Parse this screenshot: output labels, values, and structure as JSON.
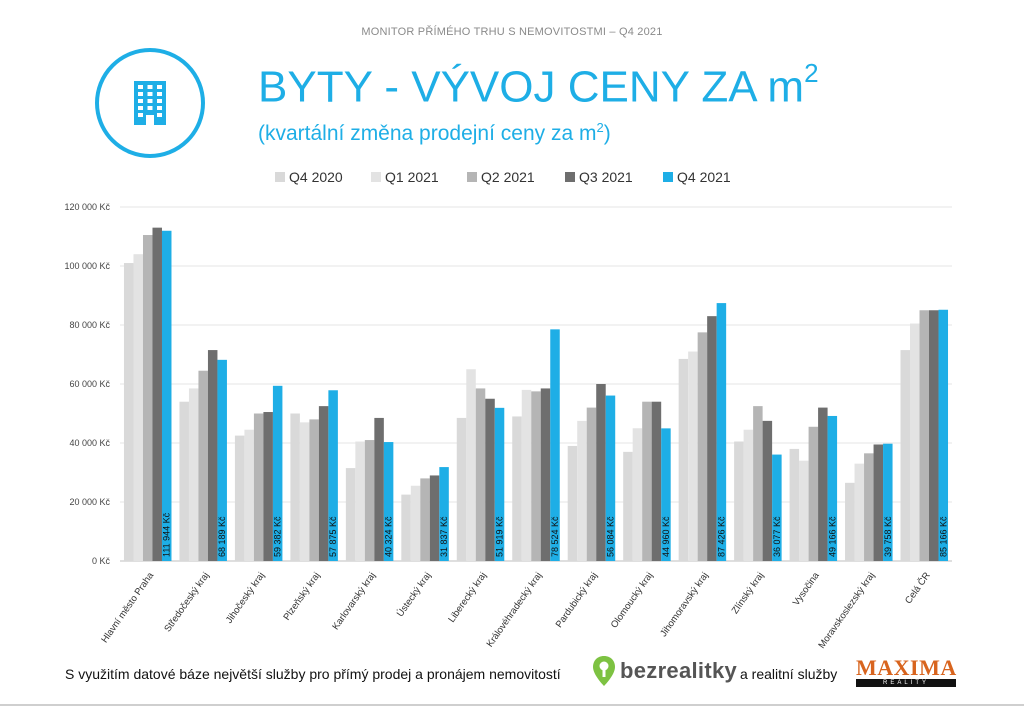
{
  "header": {
    "text": "MONITOR PŘÍMÉHO TRHU S NEMOVITOSTMI – Q4 2021",
    "logo_icon": "building-icon"
  },
  "title": {
    "main": "BYTY - VÝVOJ CENY ZA m",
    "main_sup": "2",
    "sub": "(kvartální změna prodejní ceny za m",
    "sub_sup": "2",
    "sub_end": ")"
  },
  "colors": {
    "accent": "#1eaee6",
    "Q4 2020": "#d9d9d9",
    "Q1 2021": "#e3e3e3",
    "Q2 2021": "#b5b5b5",
    "Q3 2021": "#6e6e6e",
    "Q4 2021": "#1eaee6"
  },
  "chart_data": {
    "type": "bar",
    "categories": [
      "Hlavní město Praha",
      "Středočeský kraj",
      "Jihočeský kraj",
      "Plzeňský kraj",
      "Karlovarský kraj",
      "Ústecký kraj",
      "Liberecký kraj",
      "Královéhradecký kraj",
      "Pardubický kraj",
      "Olomoucký kraj",
      "Jihomoravský kraj",
      "Zlínský kraj",
      "Vysočina",
      "Moravskoslezský kraj",
      "Celá ČR"
    ],
    "series": [
      {
        "name": "Q4 2020",
        "values": [
          101000,
          54000,
          42500,
          50000,
          31500,
          22500,
          48500,
          49000,
          39000,
          37000,
          68500,
          40500,
          38000,
          26500,
          71500
        ]
      },
      {
        "name": "Q1 2021",
        "values": [
          104000,
          58500,
          44500,
          47000,
          40500,
          25500,
          65000,
          58000,
          47500,
          45000,
          71000,
          44500,
          34000,
          33000,
          80500
        ]
      },
      {
        "name": "Q2 2021",
        "values": [
          110500,
          64500,
          50000,
          48000,
          41000,
          28000,
          58500,
          57500,
          52000,
          54000,
          77500,
          52500,
          45500,
          36500,
          85000
        ]
      },
      {
        "name": "Q3 2021",
        "values": [
          113000,
          71500,
          50500,
          52500,
          48500,
          29000,
          55000,
          58500,
          60000,
          54000,
          83000,
          47500,
          52000,
          39500,
          85000
        ]
      },
      {
        "name": "Q4 2021",
        "values": [
          111944,
          68189,
          59382,
          57875,
          40324,
          31837,
          51919,
          78524,
          56084,
          44960,
          87426,
          36077,
          49166,
          39758,
          85166
        ]
      }
    ],
    "data_labels": [
      "111 944 Kč",
      "68 189 Kč",
      "59 382 Kč",
      "57 875 Kč",
      "40 324 Kč",
      "31 837 Kč",
      "51 919 Kč",
      "78 524 Kč",
      "56 084 Kč",
      "44 960 Kč",
      "87 426 Kč",
      "36 077 Kč",
      "49 166 Kč",
      "39 758 Kč",
      "85 166 Kč"
    ],
    "y_ticks": [
      "0 Kč",
      "20 000 Kč",
      "40 000 Kč",
      "60 000 Kč",
      "80 000 Kč",
      "100 000 Kč",
      "120 000 Kč"
    ],
    "ylim": [
      0,
      120000
    ],
    "grid": true,
    "legend": "top-center"
  },
  "footer": {
    "text": "S využitím datové báze největší služby pro přímý prodej a pronájem nemovitostí",
    "bez_brand": "bezrealitky",
    "realitni": "a realitní služby",
    "maxima_brand": "MAXIMA",
    "maxima_sub": "REALITY"
  }
}
